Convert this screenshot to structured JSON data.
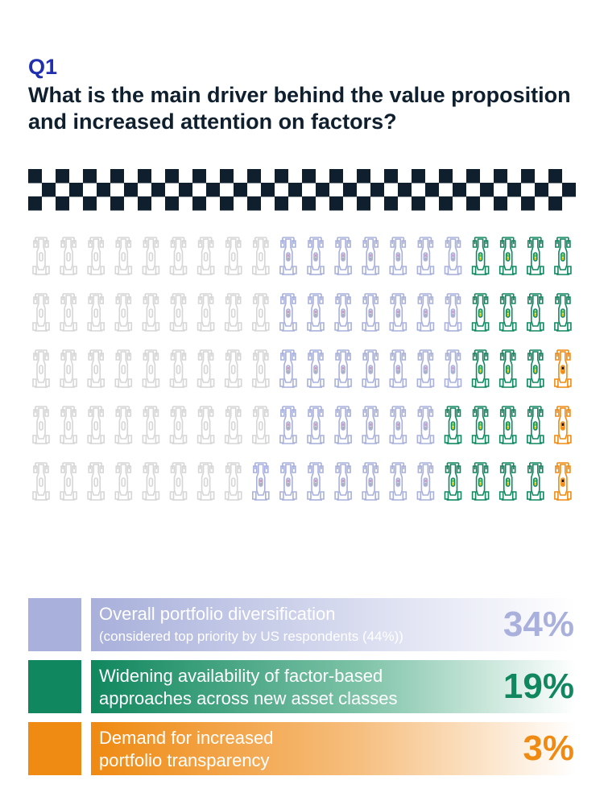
{
  "question": {
    "label": "Q1",
    "title": "What is the main driver behind the value proposition and increased attention on factors?"
  },
  "colors": {
    "gray": "#d6d6d6",
    "blue": "#a8b0db",
    "green": "#10875e",
    "orange": "#ef8a12",
    "dark": "#0f1f2e"
  },
  "icon": "race-car-icon",
  "chart_data": {
    "type": "waffle",
    "units": 100,
    "rows": 5,
    "columns": 20,
    "series": [
      {
        "name": "Overall portfolio diversification",
        "value": 34,
        "color": "#a8b0db",
        "note": "(considered top priority by US respondents (44%))"
      },
      {
        "name": "Widening availability of factor-based approaches across new asset classes",
        "value": 19,
        "color": "#10875e"
      },
      {
        "name": "Demand for increased portfolio transparency",
        "value": 3,
        "color": "#ef8a12"
      }
    ]
  },
  "legend": [
    {
      "line1": "Overall portfolio diversification",
      "line2": "(considered top priority by US respondents (44%))",
      "pct": "34%",
      "color": "#a8b0db"
    },
    {
      "line1": "Widening availability of factor-based",
      "line2": "approaches across new asset classes",
      "pct": "19%",
      "color": "#10875e"
    },
    {
      "line1": "Demand for increased",
      "line2": "portfolio transparency",
      "pct": "3%",
      "color": "#ef8a12"
    }
  ]
}
